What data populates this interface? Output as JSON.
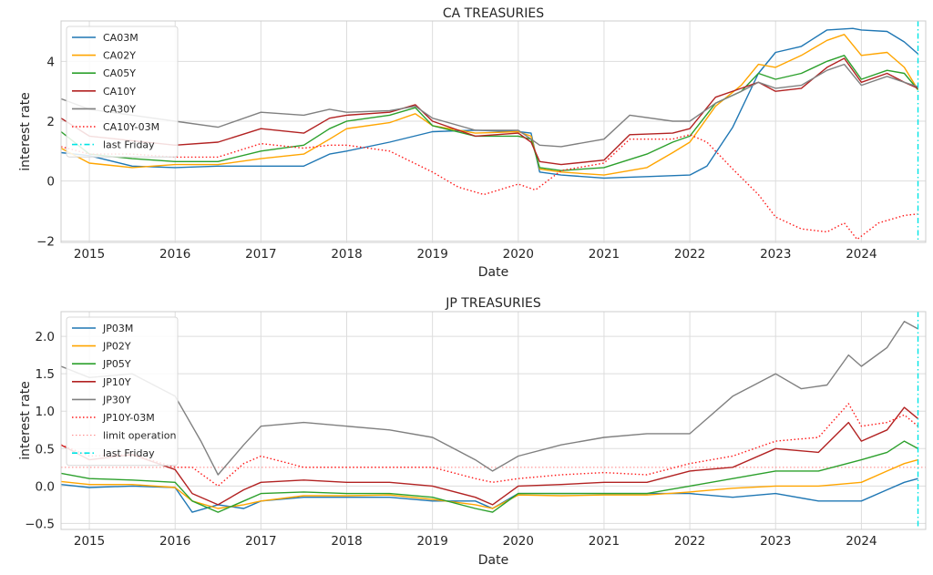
{
  "chart_data": [
    {
      "type": "line",
      "title": "CA TREASURIES",
      "xlabel": "Date",
      "ylabel": "interest rate",
      "xlim": [
        2014.67,
        2024.75
      ],
      "ylim": [
        -2.05,
        5.35
      ],
      "xticks": [
        2015,
        2016,
        2017,
        2018,
        2019,
        2020,
        2021,
        2022,
        2023,
        2024
      ],
      "xtick_labels": [
        "2015",
        "2016",
        "2017",
        "2018",
        "2019",
        "2020",
        "2021",
        "2022",
        "2023",
        "2024"
      ],
      "yticks": [
        -2,
        0,
        2,
        4
      ],
      "ytick_labels": [
        "−2",
        "0",
        "2",
        "4"
      ],
      "grid": true,
      "legend_position": "upper-left",
      "vline": {
        "name": "last Friday",
        "x": 2024.66,
        "color": "#00e5e5",
        "style": "dashdot"
      },
      "series": [
        {
          "name": "CA03M",
          "color": "#1f77b4",
          "style": "solid",
          "x": [
            2014.67,
            2015.0,
            2015.5,
            2016.0,
            2016.5,
            2017.0,
            2017.5,
            2017.8,
            2018.0,
            2018.5,
            2019.0,
            2019.5,
            2020.0,
            2020.15,
            2020.25,
            2020.5,
            2021.0,
            2021.5,
            2022.0,
            2022.2,
            2022.5,
            2022.8,
            2023.0,
            2023.3,
            2023.6,
            2023.9,
            2024.0,
            2024.3,
            2024.5,
            2024.66
          ],
          "y": [
            0.95,
            0.85,
            0.5,
            0.45,
            0.5,
            0.5,
            0.5,
            0.9,
            1.0,
            1.3,
            1.65,
            1.7,
            1.65,
            1.6,
            0.3,
            0.2,
            0.1,
            0.15,
            0.2,
            0.5,
            1.8,
            3.6,
            4.3,
            4.5,
            5.05,
            5.1,
            5.05,
            5.0,
            4.65,
            4.25
          ]
        },
        {
          "name": "CA02Y",
          "color": "#ffa500",
          "style": "solid",
          "x": [
            2014.67,
            2015.0,
            2015.5,
            2016.0,
            2016.5,
            2017.0,
            2017.5,
            2017.8,
            2018.0,
            2018.5,
            2018.8,
            2019.0,
            2019.5,
            2020.0,
            2020.15,
            2020.25,
            2020.5,
            2021.0,
            2021.5,
            2021.8,
            2022.0,
            2022.3,
            2022.6,
            2022.8,
            2023.0,
            2023.3,
            2023.6,
            2023.8,
            2024.0,
            2024.3,
            2024.5,
            2024.66
          ],
          "y": [
            1.1,
            0.6,
            0.45,
            0.55,
            0.55,
            0.75,
            0.9,
            1.4,
            1.75,
            1.95,
            2.25,
            1.85,
            1.6,
            1.65,
            1.5,
            0.4,
            0.3,
            0.2,
            0.45,
            0.95,
            1.3,
            2.5,
            3.2,
            3.9,
            3.8,
            4.2,
            4.7,
            4.9,
            4.2,
            4.3,
            3.8,
            3.05
          ]
        },
        {
          "name": "CA05Y",
          "color": "#2ca02c",
          "style": "solid",
          "x": [
            2014.67,
            2015.0,
            2015.5,
            2016.0,
            2016.5,
            2017.0,
            2017.5,
            2017.8,
            2018.0,
            2018.5,
            2018.8,
            2019.0,
            2019.5,
            2020.0,
            2020.15,
            2020.25,
            2020.5,
            2021.0,
            2021.5,
            2021.8,
            2022.0,
            2022.3,
            2022.6,
            2022.8,
            2023.0,
            2023.3,
            2023.6,
            2023.8,
            2024.0,
            2024.3,
            2024.5,
            2024.66
          ],
          "y": [
            1.65,
            0.9,
            0.75,
            0.65,
            0.65,
            1.0,
            1.2,
            1.75,
            2.0,
            2.2,
            2.45,
            1.85,
            1.5,
            1.5,
            1.4,
            0.45,
            0.35,
            0.45,
            0.9,
            1.3,
            1.5,
            2.6,
            3.0,
            3.6,
            3.4,
            3.6,
            4.0,
            4.2,
            3.4,
            3.7,
            3.6,
            3.05
          ]
        },
        {
          "name": "CA10Y",
          "color": "#b22222",
          "style": "solid",
          "x": [
            2014.67,
            2015.0,
            2015.5,
            2016.0,
            2016.5,
            2017.0,
            2017.5,
            2017.8,
            2018.0,
            2018.5,
            2018.8,
            2019.0,
            2019.5,
            2020.0,
            2020.15,
            2020.25,
            2020.5,
            2021.0,
            2021.3,
            2021.8,
            2022.0,
            2022.3,
            2022.6,
            2022.8,
            2023.0,
            2023.3,
            2023.6,
            2023.8,
            2024.0,
            2024.3,
            2024.5,
            2024.66
          ],
          "y": [
            2.1,
            1.5,
            1.35,
            1.2,
            1.3,
            1.75,
            1.6,
            2.1,
            2.2,
            2.3,
            2.55,
            2.0,
            1.5,
            1.6,
            1.3,
            0.65,
            0.55,
            0.7,
            1.55,
            1.6,
            1.75,
            2.8,
            3.1,
            3.3,
            3.0,
            3.1,
            3.8,
            4.1,
            3.3,
            3.6,
            3.3,
            3.1
          ]
        },
        {
          "name": "CA30Y",
          "color": "#808080",
          "style": "solid",
          "x": [
            2014.67,
            2015.0,
            2015.5,
            2016.0,
            2016.5,
            2017.0,
            2017.5,
            2017.8,
            2018.0,
            2018.5,
            2018.8,
            2019.0,
            2019.5,
            2020.0,
            2020.15,
            2020.25,
            2020.5,
            2021.0,
            2021.3,
            2021.8,
            2022.0,
            2022.3,
            2022.6,
            2022.8,
            2023.0,
            2023.3,
            2023.6,
            2023.8,
            2024.0,
            2024.3,
            2024.5,
            2024.66
          ],
          "y": [
            2.75,
            2.4,
            2.2,
            2.0,
            1.8,
            2.3,
            2.2,
            2.4,
            2.3,
            2.35,
            2.5,
            2.1,
            1.7,
            1.7,
            1.4,
            1.2,
            1.15,
            1.4,
            2.2,
            2.0,
            2.0,
            2.6,
            3.0,
            3.3,
            3.1,
            3.2,
            3.7,
            3.9,
            3.2,
            3.5,
            3.3,
            3.15
          ]
        },
        {
          "name": "CA10Y-03M",
          "color": "#ff1a1a",
          "style": "dotted",
          "x": [
            2014.67,
            2015.0,
            2015.5,
            2016.0,
            2016.5,
            2017.0,
            2017.5,
            2017.8,
            2018.0,
            2018.5,
            2019.0,
            2019.3,
            2019.6,
            2020.0,
            2020.2,
            2020.5,
            2021.0,
            2021.3,
            2021.8,
            2022.0,
            2022.2,
            2022.5,
            2022.8,
            2023.0,
            2023.3,
            2023.6,
            2023.8,
            2023.95,
            2024.2,
            2024.5,
            2024.66
          ],
          "y": [
            1.15,
            0.9,
            0.9,
            0.8,
            0.8,
            1.25,
            1.1,
            1.2,
            1.2,
            1.0,
            0.3,
            -0.2,
            -0.45,
            -0.1,
            -0.3,
            0.35,
            0.6,
            1.4,
            1.4,
            1.55,
            1.3,
            0.4,
            -0.45,
            -1.2,
            -1.6,
            -1.7,
            -1.4,
            -1.95,
            -1.4,
            -1.15,
            -1.1
          ]
        }
      ]
    },
    {
      "type": "line",
      "title": "JP TREASURIES",
      "xlabel": "Date",
      "ylabel": "interest rate",
      "xlim": [
        2014.67,
        2024.75
      ],
      "ylim": [
        -0.58,
        2.33
      ],
      "xticks": [
        2015,
        2016,
        2017,
        2018,
        2019,
        2020,
        2021,
        2022,
        2023,
        2024
      ],
      "xtick_labels": [
        "2015",
        "2016",
        "2017",
        "2018",
        "2019",
        "2020",
        "2021",
        "2022",
        "2023",
        "2024"
      ],
      "yticks": [
        -0.5,
        0.0,
        0.5,
        1.0,
        1.5,
        2.0
      ],
      "ytick_labels": [
        "−0.5",
        "0.0",
        "0.5",
        "1.0",
        "1.5",
        "2.0"
      ],
      "grid": true,
      "legend_position": "upper-left",
      "hline": {
        "name": "limit operation",
        "y": 0.25,
        "color": "#ff8080",
        "style": "dotted"
      },
      "vline": {
        "name": "last Friday",
        "x": 2024.66,
        "color": "#00e5e5",
        "style": "dashdot"
      },
      "series": [
        {
          "name": "JP03M",
          "color": "#1f77b4",
          "style": "solid",
          "x": [
            2014.67,
            2015.0,
            2015.5,
            2016.0,
            2016.2,
            2016.5,
            2016.8,
            2017.0,
            2017.5,
            2018.0,
            2018.5,
            2019.0,
            2019.5,
            2019.7,
            2020.0,
            2020.5,
            2021.0,
            2021.5,
            2022.0,
            2022.5,
            2023.0,
            2023.5,
            2024.0,
            2024.3,
            2024.5,
            2024.66
          ],
          "y": [
            0.02,
            -0.02,
            0.0,
            -0.02,
            -0.35,
            -0.25,
            -0.3,
            -0.2,
            -0.15,
            -0.15,
            -0.15,
            -0.2,
            -0.2,
            -0.3,
            -0.1,
            -0.1,
            -0.1,
            -0.1,
            -0.1,
            -0.15,
            -0.1,
            -0.2,
            -0.2,
            -0.05,
            0.05,
            0.1
          ]
        },
        {
          "name": "JP02Y",
          "color": "#ffa500",
          "style": "solid",
          "x": [
            2014.67,
            2015.0,
            2015.5,
            2016.0,
            2016.2,
            2016.5,
            2016.8,
            2017.0,
            2017.5,
            2018.0,
            2018.5,
            2019.0,
            2019.5,
            2019.7,
            2020.0,
            2020.5,
            2021.0,
            2021.5,
            2022.0,
            2022.5,
            2023.0,
            2023.5,
            2024.0,
            2024.3,
            2024.5,
            2024.66
          ],
          "y": [
            0.06,
            0.02,
            0.02,
            -0.02,
            -0.2,
            -0.3,
            -0.25,
            -0.2,
            -0.13,
            -0.13,
            -0.12,
            -0.18,
            -0.25,
            -0.3,
            -0.12,
            -0.13,
            -0.12,
            -0.12,
            -0.08,
            -0.03,
            0.0,
            0.0,
            0.05,
            0.2,
            0.3,
            0.35
          ]
        },
        {
          "name": "JP05Y",
          "color": "#2ca02c",
          "style": "solid",
          "x": [
            2014.67,
            2015.0,
            2015.5,
            2016.0,
            2016.2,
            2016.5,
            2016.8,
            2017.0,
            2017.5,
            2018.0,
            2018.5,
            2019.0,
            2019.5,
            2019.7,
            2020.0,
            2020.5,
            2021.0,
            2021.5,
            2022.0,
            2022.5,
            2023.0,
            2023.5,
            2024.0,
            2024.3,
            2024.5,
            2024.66
          ],
          "y": [
            0.17,
            0.1,
            0.08,
            0.05,
            -0.2,
            -0.35,
            -0.2,
            -0.1,
            -0.08,
            -0.1,
            -0.1,
            -0.15,
            -0.3,
            -0.35,
            -0.1,
            -0.1,
            -0.1,
            -0.1,
            0.0,
            0.1,
            0.2,
            0.2,
            0.35,
            0.45,
            0.6,
            0.5
          ]
        },
        {
          "name": "JP10Y",
          "color": "#b22222",
          "style": "solid",
          "x": [
            2014.67,
            2015.0,
            2015.5,
            2016.0,
            2016.2,
            2016.5,
            2016.8,
            2017.0,
            2017.5,
            2018.0,
            2018.5,
            2019.0,
            2019.5,
            2019.7,
            2020.0,
            2020.5,
            2021.0,
            2021.5,
            2022.0,
            2022.5,
            2023.0,
            2023.5,
            2023.85,
            2024.0,
            2024.3,
            2024.5,
            2024.66
          ],
          "y": [
            0.55,
            0.35,
            0.42,
            0.22,
            -0.1,
            -0.25,
            -0.05,
            0.05,
            0.08,
            0.05,
            0.05,
            0.0,
            -0.15,
            -0.25,
            0.0,
            0.02,
            0.05,
            0.05,
            0.2,
            0.25,
            0.5,
            0.45,
            0.85,
            0.6,
            0.75,
            1.05,
            0.9
          ]
        },
        {
          "name": "JP30Y",
          "color": "#808080",
          "style": "solid",
          "x": [
            2014.67,
            2015.0,
            2015.5,
            2016.0,
            2016.3,
            2016.5,
            2016.8,
            2017.0,
            2017.5,
            2018.0,
            2018.5,
            2019.0,
            2019.5,
            2019.7,
            2020.0,
            2020.5,
            2021.0,
            2021.5,
            2022.0,
            2022.5,
            2023.0,
            2023.3,
            2023.6,
            2023.85,
            2024.0,
            2024.3,
            2024.5,
            2024.66
          ],
          "y": [
            1.6,
            1.45,
            1.5,
            1.2,
            0.6,
            0.15,
            0.55,
            0.8,
            0.85,
            0.8,
            0.75,
            0.65,
            0.35,
            0.2,
            0.4,
            0.55,
            0.65,
            0.7,
            0.7,
            1.2,
            1.5,
            1.3,
            1.35,
            1.75,
            1.6,
            1.85,
            2.2,
            2.1
          ]
        },
        {
          "name": "JP10Y-03M",
          "color": "#ff1a1a",
          "style": "dotted",
          "x": [
            2014.67,
            2015.0,
            2015.5,
            2016.0,
            2016.2,
            2016.5,
            2016.8,
            2017.0,
            2017.5,
            2018.0,
            2018.5,
            2019.0,
            2019.5,
            2019.7,
            2020.0,
            2020.5,
            2021.0,
            2021.5,
            2022.0,
            2022.5,
            2023.0,
            2023.5,
            2023.85,
            2024.0,
            2024.3,
            2024.5,
            2024.66
          ],
          "y": [
            0.55,
            0.4,
            0.42,
            0.25,
            0.25,
            0.0,
            0.3,
            0.4,
            0.25,
            0.25,
            0.25,
            0.25,
            0.1,
            0.05,
            0.1,
            0.15,
            0.18,
            0.15,
            0.3,
            0.4,
            0.6,
            0.65,
            1.1,
            0.8,
            0.85,
            0.95,
            0.8
          ]
        }
      ]
    }
  ]
}
